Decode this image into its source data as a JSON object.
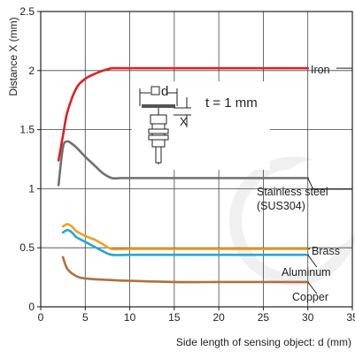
{
  "chart_data": {
    "type": "line",
    "title": "",
    "xlabel": "Side length of sensing object: d (mm)",
    "ylabel": "Distance X (mm)",
    "xlim": [
      0,
      35
    ],
    "ylim": [
      0,
      2.5
    ],
    "xticks": [
      "0",
      "5",
      "10",
      "15",
      "20",
      "25",
      "30",
      "35"
    ],
    "yticks": [
      "0",
      "0.5",
      "1",
      "1.5",
      "2",
      "2.5"
    ],
    "grid": true,
    "inset": {
      "d_label": "d",
      "x_label": "X",
      "condition": "t = 1 mm"
    },
    "series": [
      {
        "name": "Iron",
        "color": "#e02020",
        "x": [
          2,
          2.5,
          3,
          4,
          5,
          6,
          7,
          7.5,
          8,
          9,
          10,
          12,
          15,
          20,
          25,
          30
        ],
        "y": [
          1.24,
          1.45,
          1.65,
          1.85,
          1.93,
          1.97,
          2.0,
          2.01,
          2.02,
          2.02,
          2.02,
          2.02,
          2.02,
          2.02,
          2.02,
          2.02
        ]
      },
      {
        "name": "Stainless steel\n(SUS304)",
        "color": "#707070",
        "x": [
          2,
          2.5,
          3,
          3.5,
          4,
          5,
          6,
          7,
          8,
          9,
          10,
          15,
          20,
          25,
          30
        ],
        "y": [
          1.03,
          1.35,
          1.4,
          1.38,
          1.35,
          1.27,
          1.2,
          1.13,
          1.09,
          1.09,
          1.09,
          1.09,
          1.09,
          1.09,
          1.09
        ]
      },
      {
        "name": "Brass",
        "color": "#f0a020",
        "x": [
          2.5,
          3,
          3.5,
          4,
          5,
          6,
          7,
          8,
          10,
          15,
          20,
          25,
          30
        ],
        "y": [
          0.68,
          0.7,
          0.68,
          0.64,
          0.6,
          0.57,
          0.53,
          0.49,
          0.49,
          0.49,
          0.49,
          0.49,
          0.49
        ]
      },
      {
        "name": "Aluminum",
        "color": "#20a8d8",
        "x": [
          2.5,
          3,
          3.5,
          4,
          5,
          6,
          7,
          8,
          10,
          15,
          20,
          25,
          30
        ],
        "y": [
          0.63,
          0.65,
          0.63,
          0.59,
          0.55,
          0.51,
          0.47,
          0.44,
          0.44,
          0.44,
          0.44,
          0.44,
          0.44
        ]
      },
      {
        "name": "Copper",
        "color": "#b07040",
        "x": [
          2.5,
          3,
          4,
          5,
          7,
          10,
          15,
          20,
          25,
          30
        ],
        "y": [
          0.42,
          0.32,
          0.26,
          0.24,
          0.23,
          0.22,
          0.21,
          0.21,
          0.21,
          0.21
        ]
      }
    ]
  }
}
